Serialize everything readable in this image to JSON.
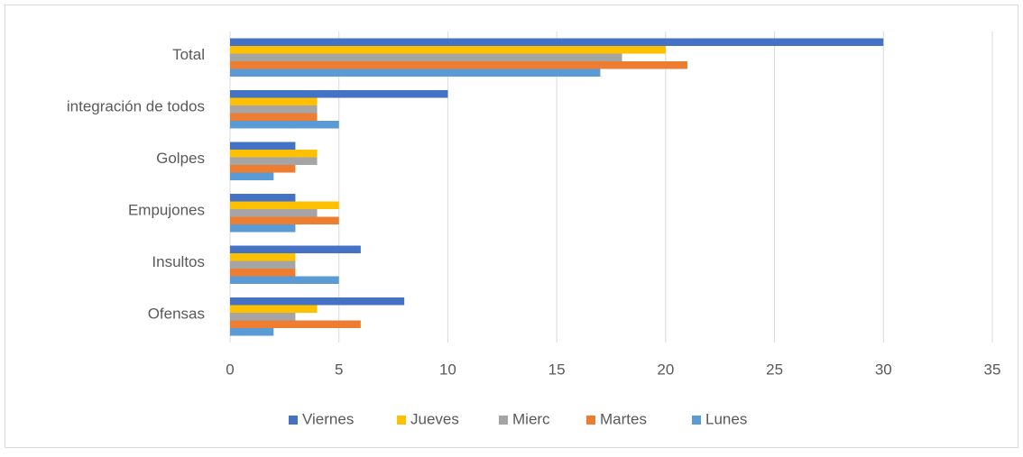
{
  "chart_data": {
    "type": "hbar",
    "categories": [
      "Ofensas",
      "Insultos",
      "Empujones",
      "Golpes",
      "integración de todos",
      "Total"
    ],
    "series": [
      {
        "name": "Viernes",
        "color": "#4472c4",
        "values": [
          8,
          6,
          3,
          3,
          10,
          30
        ]
      },
      {
        "name": "Jueves",
        "color": "#ffc000",
        "values": [
          4,
          3,
          5,
          4,
          4,
          20
        ]
      },
      {
        "name": "Mierc",
        "color": "#a5a5a5",
        "values": [
          3,
          3,
          4,
          4,
          4,
          18
        ]
      },
      {
        "name": "Martes",
        "color": "#ed7d31",
        "values": [
          6,
          3,
          5,
          3,
          4,
          21
        ]
      },
      {
        "name": "Lunes",
        "color": "#5b9bd5",
        "values": [
          2,
          5,
          3,
          2,
          5,
          17
        ]
      }
    ],
    "xlim": [
      0,
      35
    ],
    "xticks": [
      0,
      5,
      10,
      15,
      20,
      25,
      30,
      35
    ],
    "grid": true,
    "legend": "bottom"
  }
}
